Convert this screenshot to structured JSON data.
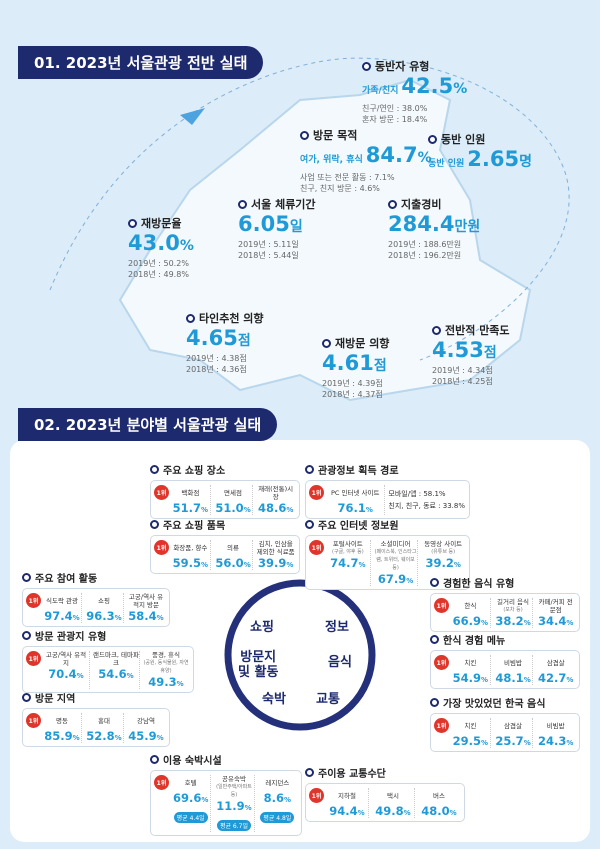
{
  "overview": {
    "title": "01. 2023년 서울관광 전반 실태",
    "stats": [
      {
        "label": "동반자 유형",
        "prefix": "가족/친지",
        "value": "42.5",
        "unit": "%",
        "subs": [
          "친구/연인 : 38.0%",
          "혼자 방문 : 18.4%"
        ]
      },
      {
        "label": "방문 목적",
        "prefix": "여가, 위락, 휴식",
        "value": "84.7",
        "unit": "%",
        "subs": [
          "사업 또는 전문 활동 : 7.1%",
          "친구, 친지 방문 : 4.6%"
        ]
      },
      {
        "label": "동반 인원",
        "prefix": "동반 인원",
        "value": "2.65",
        "unit": "명",
        "subs": []
      },
      {
        "label": "서울 체류기간",
        "value": "6.05",
        "unit": "일",
        "subs": [
          "2019년 : 5.11일",
          "2018년 : 5.44일"
        ]
      },
      {
        "label": "지출경비",
        "value": "284.4",
        "unit": "만원",
        "subs": [
          "2019년 : 188.6만원",
          "2018년 : 196.2만원"
        ]
      },
      {
        "label": "재방문율",
        "value": "43.0",
        "unit": "%",
        "subs": [
          "2019년 : 50.2%",
          "2018년 : 49.8%"
        ]
      },
      {
        "label": "타인추천 의향",
        "value": "4.65",
        "unit": "점",
        "subs": [
          "2019년 : 4.38점",
          "2018년 : 4.36점"
        ]
      },
      {
        "label": "재방문 의향",
        "value": "4.61",
        "unit": "점",
        "subs": [
          "2019년 : 4.39점",
          "2018년 : 4.37점"
        ]
      },
      {
        "label": "전반적 만족도",
        "value": "4.53",
        "unit": "점",
        "subs": [
          "2019년 : 4.34점",
          "2018년 : 4.25점"
        ]
      }
    ]
  },
  "sectors": {
    "title": "02. 2023년 분야별 서울관광 실태",
    "badge": "1위",
    "hub": [
      "쇼핑",
      "정보",
      "방문지",
      "및 활동",
      "음식",
      "숙박",
      "교통"
    ],
    "panels": [
      {
        "title": "주요 쇼핑 장소",
        "unit": "%",
        "items": [
          {
            "label": "백화점",
            "value": "51.7"
          },
          {
            "label": "면세점",
            "value": "51.0"
          },
          {
            "label": "재래(전통)시장",
            "value": "48.6"
          }
        ]
      },
      {
        "title": "주요 쇼핑 품목",
        "unit": "%",
        "items": [
          {
            "label": "화장품, 향수",
            "value": "59.5"
          },
          {
            "label": "의류",
            "value": "56.0"
          },
          {
            "label": "김치, 인삼을 제외한 식료품",
            "value": "39.9"
          }
        ]
      },
      {
        "title": "주요 참여 활동",
        "unit": "%",
        "items": [
          {
            "label": "식도락 관광",
            "value": "97.4"
          },
          {
            "label": "쇼핑",
            "value": "96.3"
          },
          {
            "label": "고궁/역사 유적지 방문",
            "value": "58.4"
          }
        ]
      },
      {
        "title": "방문 관광지 유형",
        "unit": "%",
        "items": [
          {
            "label": "고궁/역사 유적지",
            "value": "70.4"
          },
          {
            "label": "랜드마크, 테마파크",
            "value": "54.6"
          },
          {
            "label": "풍경, 휴식",
            "sub": "(공원, 동식물원, 자연휴양)",
            "value": "49.3"
          }
        ]
      },
      {
        "title": "방문 지역",
        "unit": "%",
        "items": [
          {
            "label": "명동",
            "value": "85.9"
          },
          {
            "label": "홍대",
            "value": "52.8"
          },
          {
            "label": "강남역",
            "value": "45.9"
          }
        ]
      },
      {
        "title": "이용 숙박시설",
        "unit": "%",
        "items": [
          {
            "label": "호텔",
            "value": "69.6",
            "avg": "평균 4.4일"
          },
          {
            "label": "공유숙박",
            "sub": "(일반주택/아파트 등)",
            "value": "11.9",
            "avg": "평균 6.7일"
          },
          {
            "label": "레지던스",
            "value": "8.6",
            "avg": "평균 4.8일"
          }
        ]
      },
      {
        "title": "관광정보 획득 경로",
        "unit": "%",
        "items": [
          {
            "label": "PC 인터넷 사이트",
            "value": "76.1"
          }
        ],
        "notes": [
          "모바일/앱 : 58.1%",
          "친지, 친구, 동료 : 33.8%"
        ]
      },
      {
        "title": "주요 인터넷 정보원",
        "unit": "%",
        "items": [
          {
            "label": "포털사이트",
            "sub": "(구글, 야후 등)",
            "value": "74.7"
          },
          {
            "label": "소셜미디어",
            "sub": "(페이스북, 인스타그램, 트위터, 웨이보 등)",
            "value": "67.9"
          },
          {
            "label": "동영상 사이트",
            "sub": "(유튜브 등)",
            "value": "39.2"
          }
        ]
      },
      {
        "title": "경험한 음식 유형",
        "unit": "%",
        "items": [
          {
            "label": "한식",
            "value": "66.9"
          },
          {
            "label": "길거리 음식",
            "sub": "(포차 등)",
            "value": "38.2"
          },
          {
            "label": "카페/커피 전문점",
            "value": "34.4"
          }
        ]
      },
      {
        "title": "한식 경험 메뉴",
        "unit": "%",
        "items": [
          {
            "label": "치킨",
            "value": "54.9"
          },
          {
            "label": "비빔밥",
            "value": "48.1"
          },
          {
            "label": "삼겹살",
            "value": "42.7"
          }
        ]
      },
      {
        "title": "가장 맛있었던 한국 음식",
        "unit": "%",
        "items": [
          {
            "label": "치킨",
            "value": "29.5"
          },
          {
            "label": "삼겹살",
            "value": "25.7"
          },
          {
            "label": "비빔밥",
            "value": "24.3"
          }
        ]
      },
      {
        "title": "주이용 교통수단",
        "unit": "%",
        "items": [
          {
            "label": "지하철",
            "value": "94.4"
          },
          {
            "label": "택시",
            "value": "49.8"
          },
          {
            "label": "버스",
            "value": "48.0"
          }
        ]
      }
    ]
  }
}
